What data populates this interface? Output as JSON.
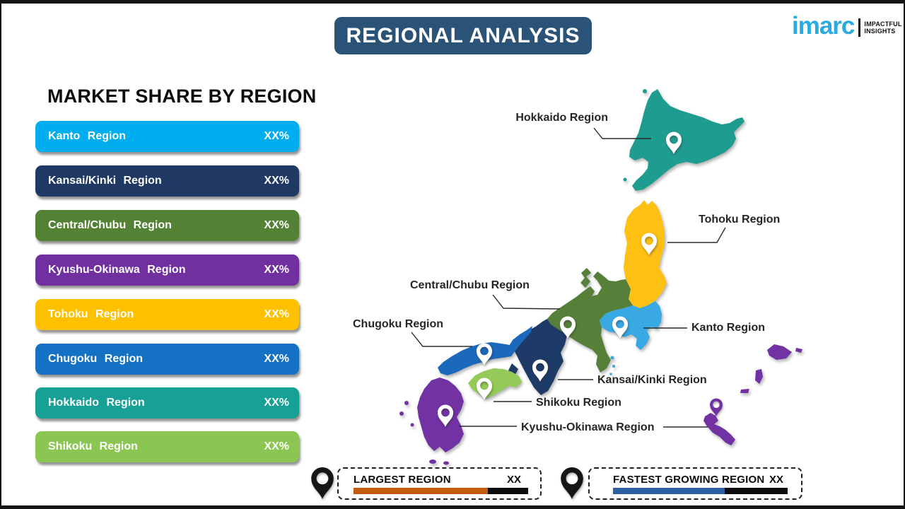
{
  "header": {
    "title": "REGIONAL ANALYSIS"
  },
  "logo": {
    "brand": "imarc",
    "tagline1": "IMPACTFUL",
    "tagline2": "INSIGHTS",
    "brand_color": "#29ABE2"
  },
  "panel": {
    "heading": "MARKET SHARE BY REGION",
    "bars": [
      {
        "label": "Kanto Region",
        "value": "XX%",
        "color": "#00ADEF"
      },
      {
        "label": "Kansai/Kinki Region",
        "value": "XX%",
        "color": "#1F3864"
      },
      {
        "label": "Central/Chubu Region",
        "value": "XX%",
        "color": "#548235"
      },
      {
        "label": "Kyushu-Okinawa Region",
        "value": "XX%",
        "color": "#7030A0"
      },
      {
        "label": "Tohoku Region",
        "value": "XX%",
        "color": "#FFC000"
      },
      {
        "label": "Chugoku Region",
        "value": "XX%",
        "color": "#1571C3"
      },
      {
        "label": "Hokkaido Region",
        "value": "XX%",
        "color": "#17A095"
      },
      {
        "label": "Shikoku Region",
        "value": "XX%",
        "color": "#8CC652"
      }
    ]
  },
  "map": {
    "regions": {
      "hokkaido": {
        "label": "Hokkaido Region",
        "color": "#1F9C90"
      },
      "tohoku": {
        "label": "Tohoku Region",
        "color": "#FDC013"
      },
      "kanto": {
        "label": "Kanto Region",
        "color": "#38A9E3"
      },
      "chubu": {
        "label": "Central/Chubu Region",
        "color": "#567F39"
      },
      "kansai": {
        "label": "Kansai/Kinki Region",
        "color": "#1E3A67"
      },
      "chugoku": {
        "label": "Chugoku Region",
        "color": "#1B69BA"
      },
      "shikoku": {
        "label": "Shikoku Region",
        "color": "#94CA57"
      },
      "kyushu": {
        "label": "Kyushu-Okinawa Region",
        "color": "#7232A3"
      }
    }
  },
  "legend": {
    "largest": {
      "label": "LARGEST REGION",
      "value": "XX",
      "bar_color": "#C55A11",
      "bar_pct": 77
    },
    "fastest": {
      "label": "FASTEST GROWING REGION",
      "value": "XX",
      "bar_color": "#2E5FA3",
      "bar_pct": 64
    }
  }
}
